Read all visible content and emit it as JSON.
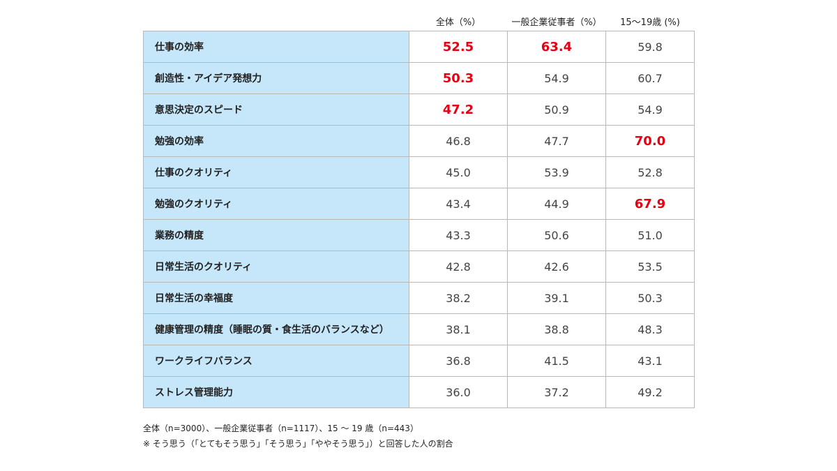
{
  "chart_data": {
    "type": "table",
    "columns": [
      "",
      "全体（%）",
      "一般企業従事者（%）",
      "15～19歳 (%)"
    ],
    "rows": [
      {
        "label": "仕事の効率",
        "values": [
          "52.5",
          "63.4",
          "59.8"
        ],
        "highlight": [
          true,
          true,
          false
        ]
      },
      {
        "label": "創造性・アイデア発想力",
        "values": [
          "50.3",
          "54.9",
          "60.7"
        ],
        "highlight": [
          true,
          false,
          false
        ]
      },
      {
        "label": "意思決定のスピード",
        "values": [
          "47.2",
          "50.9",
          "54.9"
        ],
        "highlight": [
          true,
          false,
          false
        ]
      },
      {
        "label": "勉強の効率",
        "values": [
          "46.8",
          "47.7",
          "70.0"
        ],
        "highlight": [
          false,
          false,
          true
        ]
      },
      {
        "label": "仕事のクオリティ",
        "values": [
          "45.0",
          "53.9",
          "52.8"
        ],
        "highlight": [
          false,
          false,
          false
        ]
      },
      {
        "label": "勉強のクオリティ",
        "values": [
          "43.4",
          "44.9",
          "67.9"
        ],
        "highlight": [
          false,
          false,
          true
        ]
      },
      {
        "label": "業務の精度",
        "values": [
          "43.3",
          "50.6",
          "51.0"
        ],
        "highlight": [
          false,
          false,
          false
        ]
      },
      {
        "label": "日常生活のクオリティ",
        "values": [
          "42.8",
          "42.6",
          "53.5"
        ],
        "highlight": [
          false,
          false,
          false
        ]
      },
      {
        "label": "日常生活の幸福度",
        "values": [
          "38.2",
          "39.1",
          "50.3"
        ],
        "highlight": [
          false,
          false,
          false
        ]
      },
      {
        "label": "健康管理の精度（睡眠の質・食生活のバランスなど）",
        "values": [
          "38.1",
          "38.8",
          "48.3"
        ],
        "highlight": [
          false,
          false,
          false
        ]
      },
      {
        "label": "ワークライフバランス",
        "values": [
          "36.8",
          "41.5",
          "43.1"
        ],
        "highlight": [
          false,
          false,
          false
        ]
      },
      {
        "label": "ストレス管理能力",
        "values": [
          "36.0",
          "37.2",
          "49.2"
        ],
        "highlight": [
          false,
          false,
          false
        ]
      }
    ],
    "colors": {
      "label_bg": "#c6e7fa",
      "highlight": "#e60012",
      "border": "#b8b8b8"
    }
  },
  "footnotes": {
    "sample": "全体（n=3000）、一般企業従事者（n=1117）、15 ～ 19 歳（n=443）",
    "note": "※ そう思う（「とてもそう思う」「そう思う」「ややそう思う」）と回答した人の割合"
  }
}
